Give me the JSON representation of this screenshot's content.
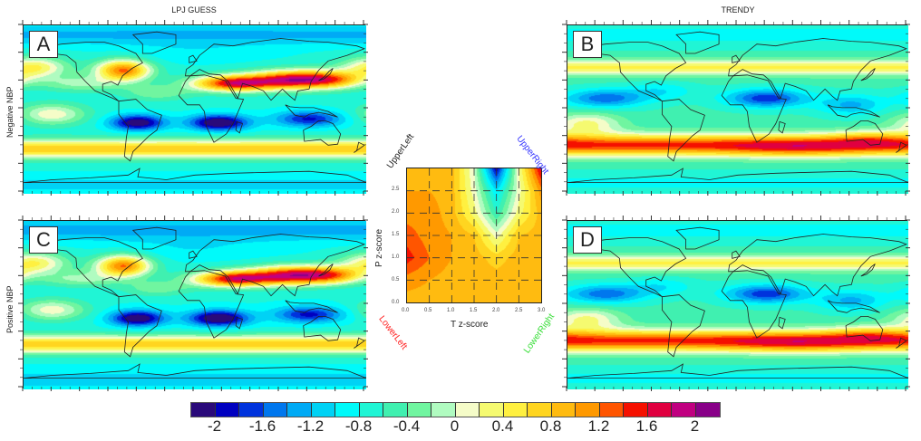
{
  "chart_data": {
    "type": "heatmap",
    "column_titles": [
      "LPJ GUESS",
      "TRENDY"
    ],
    "row_labels": [
      "Negative NBP",
      "Positive NBP"
    ],
    "panels": [
      {
        "letter": "A",
        "column": "LPJ GUESS",
        "row": "Negative NBP",
        "description": "global map; positive band across N. America 40N and Mediterranean-to-Japan 30N; negative band 10-20S over S. America, Africa, Indonesia; positive band ~40-50S"
      },
      {
        "letter": "B",
        "column": "TRENDY",
        "row": "Negative NBP",
        "description": "global map; positive band ~45N; negative band 0-20N over Pacific, Sahara, Arabia; strong positive band 30-45S"
      },
      {
        "letter": "C",
        "column": "LPJ GUESS",
        "row": "Positive NBP",
        "description": "similar pattern to A"
      },
      {
        "letter": "D",
        "column": "TRENDY",
        "row": "Positive NBP",
        "description": "similar pattern to B"
      }
    ],
    "inset": {
      "type": "heatmap",
      "xlabel": "T z-score",
      "ylabel": "P z-score",
      "xlim": [
        0.0,
        3.0
      ],
      "ylim": [
        0.0,
        3.0
      ],
      "xticks": [
        "0.0",
        "0.5",
        "1.0",
        "1.5",
        "2.0",
        "2.5",
        "3.0"
      ],
      "yticks": [
        "0.0",
        "0.5",
        "1.0",
        "1.5",
        "2.0",
        "2.5"
      ],
      "x": [
        0.0,
        0.5,
        1.0,
        1.5,
        2.0,
        2.5,
        3.0
      ],
      "y": [
        0.0,
        0.5,
        1.0,
        1.5,
        2.0,
        2.5,
        3.0
      ],
      "z": [
        [
          0.9,
          0.9,
          0.9,
          0.9,
          0.9,
          0.9,
          0.9
        ],
        [
          1.1,
          1.0,
          0.9,
          0.9,
          0.9,
          0.9,
          0.9
        ],
        [
          1.5,
          1.2,
          1.0,
          0.9,
          0.7,
          0.9,
          0.9
        ],
        [
          1.3,
          1.1,
          1.0,
          0.8,
          0.1,
          0.8,
          0.9
        ],
        [
          1.1,
          1.1,
          0.9,
          0.3,
          -0.6,
          0.3,
          0.9
        ],
        [
          1.0,
          1.0,
          0.9,
          0.1,
          -1.0,
          0.1,
          1.1
        ],
        [
          0.9,
          0.9,
          0.9,
          0.0,
          -2.0,
          0.2,
          1.7
        ]
      ],
      "corner_labels": [
        {
          "text": "UpperLeft",
          "color": "#222222"
        },
        {
          "text": "UpperRight",
          "color": "#3333ff"
        },
        {
          "text": "LowerLeft",
          "color": "#ff2222"
        },
        {
          "text": "LowerRight",
          "color": "#33dd33"
        }
      ]
    },
    "colorbar": {
      "levels": [
        -2.2,
        -2.0,
        -1.8,
        -1.6,
        -1.4,
        -1.2,
        -1.0,
        -0.8,
        -0.6,
        -0.4,
        -0.2,
        0.0,
        0.2,
        0.4,
        0.6,
        0.8,
        1.0,
        1.2,
        1.4,
        1.6,
        1.8,
        2.0,
        2.2
      ],
      "labels": [
        "-2",
        "-1.6",
        "-1.2",
        "-0.8",
        "-0.4",
        "0",
        "0.4",
        "0.8",
        "1.2",
        "1.6",
        "2"
      ],
      "colors": [
        "#2a0a7a",
        "#0000c0",
        "#0033dd",
        "#0077ee",
        "#00aaf5",
        "#00d2f5",
        "#00fafa",
        "#20f5d5",
        "#40f0b0",
        "#70f5a0",
        "#b0fbc0",
        "#f5fcc8",
        "#f5fa70",
        "#fff040",
        "#ffd520",
        "#ffbb10",
        "#ff9900",
        "#ff5500",
        "#f51000",
        "#e00040",
        "#c00080",
        "#880088"
      ]
    }
  }
}
